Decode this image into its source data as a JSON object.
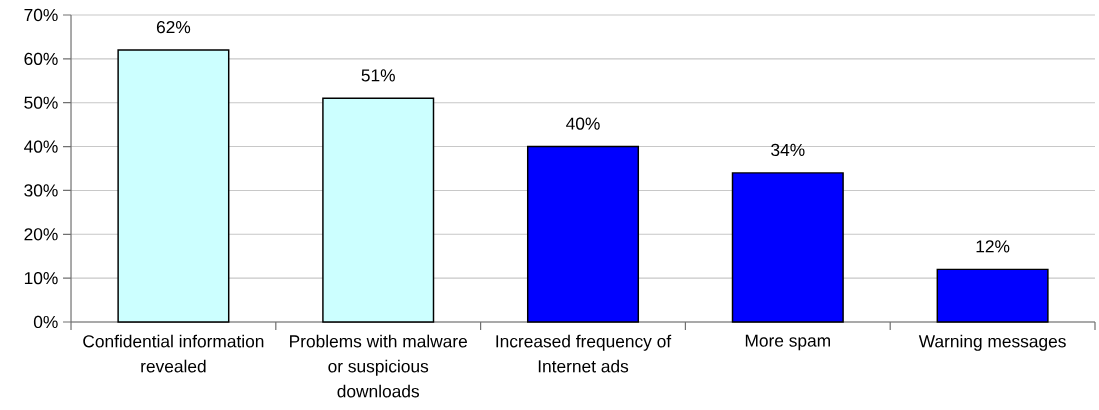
{
  "chart_data": {
    "type": "bar",
    "categories": [
      "Confidential information revealed",
      "Problems with malware or suspicious downloads",
      "Increased frequency of Internet ads",
      "More spam",
      "Warning messages"
    ],
    "values": [
      62,
      51,
      40,
      34,
      12
    ],
    "colors": [
      "#ccffff",
      "#ccffff",
      "#0000ff",
      "#0000ff",
      "#0000ff"
    ],
    "value_labels": [
      "62%",
      "51%",
      "40%",
      "34%",
      "12%"
    ],
    "ylim": [
      0,
      70
    ],
    "yticks": [
      {
        "value": 0,
        "label": "0%"
      },
      {
        "value": 10,
        "label": "10%"
      },
      {
        "value": 20,
        "label": "20%"
      },
      {
        "value": 30,
        "label": "30%"
      },
      {
        "value": 40,
        "label": "40%"
      },
      {
        "value": 50,
        "label": "50%"
      },
      {
        "value": 60,
        "label": "60%"
      },
      {
        "value": 70,
        "label": "70%"
      }
    ],
    "grid": "y"
  }
}
